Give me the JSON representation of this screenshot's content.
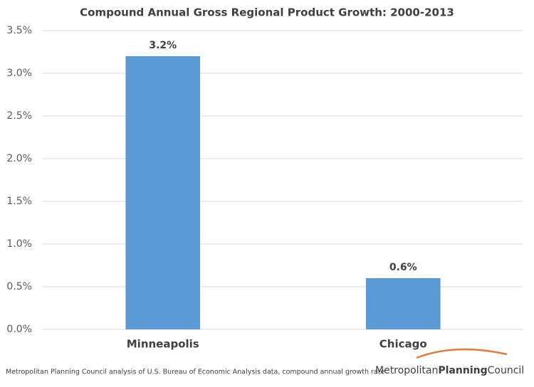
{
  "chart_data": {
    "type": "bar",
    "title": "Compound Annual Gross Regional Product Growth:  2000-2013",
    "categories": [
      "Minneapolis",
      "Chicago"
    ],
    "values": [
      3.2,
      0.6
    ],
    "value_labels": [
      "3.2%",
      "0.6%"
    ],
    "color": "#5b9bd5",
    "ylim": [
      0,
      3.5
    ],
    "yticks": [
      {
        "value": 0,
        "label": "0.0%"
      },
      {
        "value": 0.5,
        "label": "0.5%"
      },
      {
        "value": 1,
        "label": "1.0%"
      },
      {
        "value": 1.5,
        "label": "1.5%"
      },
      {
        "value": 2,
        "label": "2.0%"
      },
      {
        "value": 2.5,
        "label": "2.5%"
      },
      {
        "value": 3,
        "label": "3.0%"
      },
      {
        "value": 3.5,
        "label": "3.5%"
      }
    ],
    "grid": true
  },
  "footer": {
    "source": "Metropolitan Planning Council analysis of U.S. Bureau of Economic Analysis data, compound annual growth rate",
    "logo": [
      "Metropolitan",
      "Planning",
      "Council"
    ]
  }
}
